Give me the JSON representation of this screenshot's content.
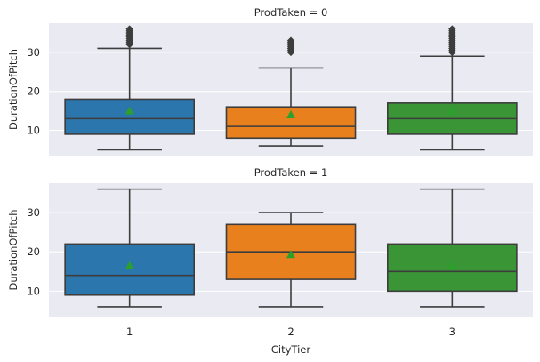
{
  "chart_data": {
    "type": "box",
    "xlabel": "CityTier",
    "categories": [
      "1",
      "2",
      "3"
    ],
    "colors": {
      "1": "#2b76ad",
      "2": "#e8801e",
      "3": "#3a9536"
    },
    "mean_marker_color": "#2ca02c",
    "background": "#eaeaf2",
    "grid": true,
    "panels": [
      {
        "title": "ProdTaken = 0",
        "ylabel": "DurationOfPitch",
        "ylim": [
          3.5,
          37.5
        ],
        "yticks": [
          10,
          20,
          30
        ],
        "boxes": [
          {
            "category": "1",
            "whisker_low": 5,
            "q1": 9,
            "median": 13,
            "q3": 18,
            "whisker_high": 31,
            "mean": 15,
            "fliers": [
              32,
              32.5,
              33,
              33.5,
              34,
              34.5,
              35,
              35.5,
              36
            ]
          },
          {
            "category": "2",
            "whisker_low": 6,
            "q1": 8,
            "median": 11,
            "q3": 16,
            "whisker_high": 26,
            "mean": 14,
            "fliers": [
              30,
              30.5,
              31,
              31.5,
              32,
              32.5,
              33
            ]
          },
          {
            "category": "3",
            "whisker_low": 5,
            "q1": 9,
            "median": 13,
            "q3": 17,
            "whisker_high": 29,
            "mean": 15,
            "fliers": [
              30,
              30.5,
              31,
              31.5,
              32,
              32.5,
              33,
              33.5,
              34,
              34.5,
              35,
              35.5,
              36
            ]
          }
        ]
      },
      {
        "title": "ProdTaken = 1",
        "ylabel": "DurationOfPitch",
        "ylim": [
          3.5,
          37.5
        ],
        "yticks": [
          10,
          20,
          30
        ],
        "boxes": [
          {
            "category": "1",
            "whisker_low": 6,
            "q1": 9,
            "median": 14,
            "q3": 22,
            "whisker_high": 36,
            "mean": 16.5,
            "fliers": []
          },
          {
            "category": "2",
            "whisker_low": 6,
            "q1": 13,
            "median": 20,
            "q3": 27,
            "whisker_high": 30,
            "mean": 19.3,
            "fliers": []
          },
          {
            "category": "3",
            "whisker_low": 6,
            "q1": 10,
            "median": 15,
            "q3": 22,
            "whisker_high": 36,
            "mean": 16.5,
            "fliers": []
          }
        ]
      }
    ]
  }
}
